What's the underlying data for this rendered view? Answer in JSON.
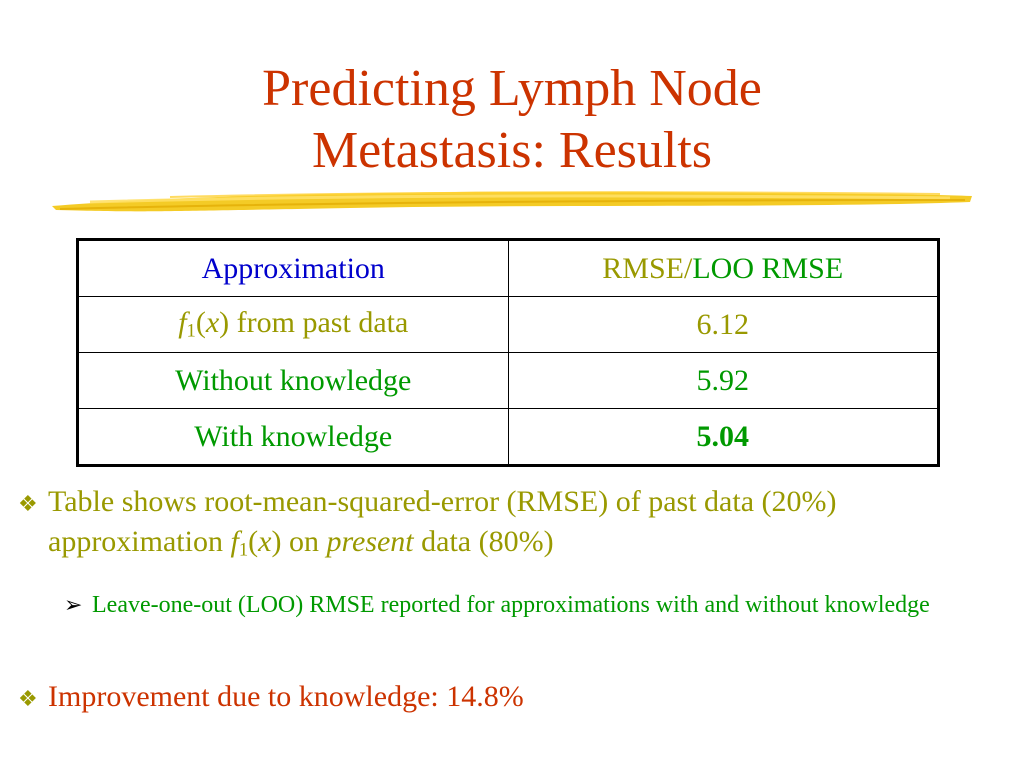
{
  "slide": {
    "title_line1": "Predicting Lymph Node",
    "title_line2": "Metastasis: Results",
    "accent_colors": {
      "title": "#cc3300",
      "table_header_left": "#0000cc",
      "olive": "#999900",
      "green": "#009900",
      "highlight_stroke": "#f2c200"
    }
  },
  "table": {
    "header": {
      "approximation": "Approximation",
      "rmse": "RMSE",
      "slash": "/",
      "loo_rmse": "LOO RMSE"
    },
    "rows": [
      {
        "func": "f",
        "sub": "1",
        "open": "(",
        "var": "x",
        "close": ")",
        "rest": " from past data",
        "value": "6.12"
      },
      {
        "label": "Without knowledge",
        "value": "5.92"
      },
      {
        "label": "With knowledge",
        "value": "5.04"
      }
    ]
  },
  "bullets": [
    {
      "icon": "diamond-bullet-icon",
      "text_a": "Table shows root-mean-squared-error (RMSE) of past data (20%) approximation ",
      "func": "f",
      "sub": "1",
      "open": "(",
      "var": "x",
      "close": ")",
      "text_b": " on ",
      "emph": "present",
      "text_c": " data (80%)"
    },
    {
      "icon": "arrow-bullet-icon",
      "text": "Leave-one-out (LOO) RMSE reported for approximations with and without knowledge"
    },
    {
      "icon": "diamond-bullet-icon",
      "text": "Improvement due to knowledge: 14.8%"
    }
  ]
}
